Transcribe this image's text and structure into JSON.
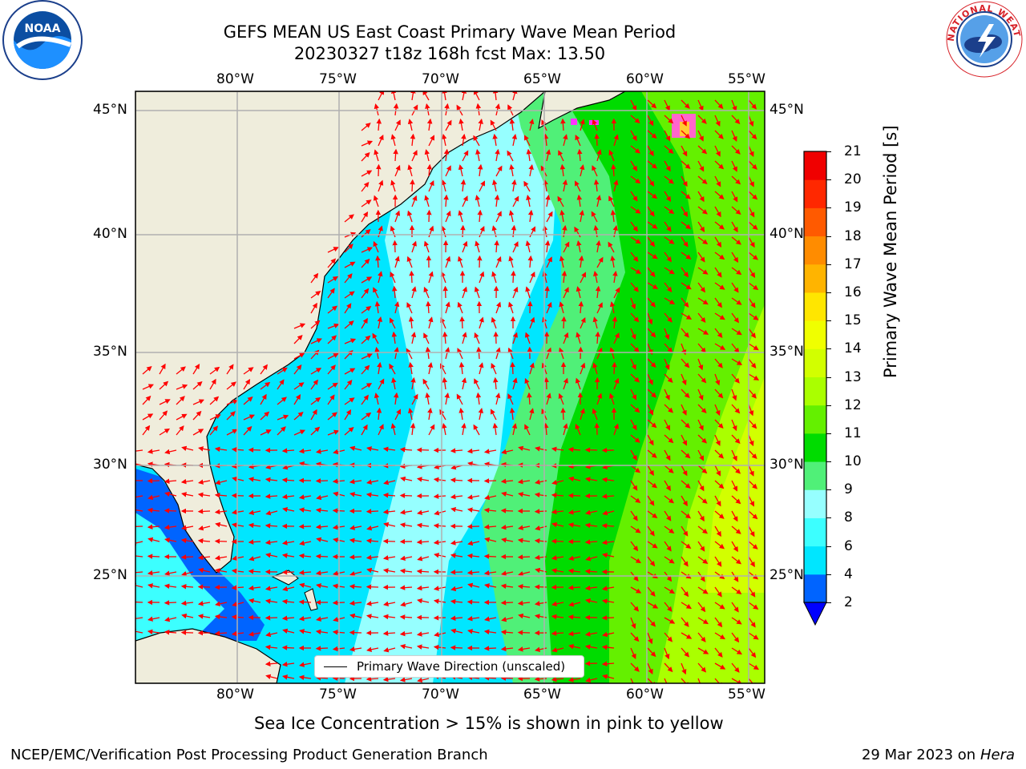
{
  "title": {
    "line1": "GEFS MEAN US East Coast Primary Wave Mean Period",
    "line2": "20230327 t18z 168h fcst   Max: 13.50"
  },
  "map": {
    "lon_labels": [
      "80°W",
      "75°W",
      "70°W",
      "65°W",
      "60°W",
      "55°W"
    ],
    "lat_labels": [
      "45°N",
      "40°N",
      "35°N",
      "30°N",
      "25°N"
    ],
    "extent": {
      "lon": [
        -85,
        -54
      ],
      "lat": [
        20.5,
        45.8
      ]
    },
    "legend_label": "Primary Wave Direction (unscaled)",
    "colors": {
      "land": "#efeddc",
      "coast": "#000000",
      "grid": "#b0b0b0",
      "arrow": "#ff0000"
    }
  },
  "colorbar": {
    "label": "Primary Wave Mean Period [s]",
    "ticks": [
      "21",
      "20",
      "19",
      "18",
      "17",
      "16",
      "15",
      "14",
      "13",
      "12",
      "11",
      "10",
      "9",
      "8",
      "6",
      "4",
      "2"
    ],
    "levels": [
      2,
      4,
      6,
      8,
      9,
      10,
      11,
      12,
      13,
      14,
      15,
      16,
      17,
      18,
      19,
      20,
      21
    ],
    "colors": [
      "#0064ff",
      "#00e6ff",
      "#3cffff",
      "#96ffff",
      "#50f078",
      "#00dc00",
      "#64f000",
      "#aaff00",
      "#d2ff00",
      "#f0ff00",
      "#ffe600",
      "#ffb400",
      "#ff8c00",
      "#ff5a00",
      "#ff2800",
      "#f00000"
    ],
    "extend_color": "#0000ff"
  },
  "subtitle": "Sea Ice Concentration > 15% is shown in pink to yellow",
  "footer": {
    "left": "NCEP/EMC/Verification Post Processing Product Generation Branch",
    "date": "29 Mar 2023 on",
    "host": "Hera"
  },
  "logos": {
    "noaa_text": "NOAA",
    "nws_text": "NATIONAL WEATHER SERVICE"
  }
}
